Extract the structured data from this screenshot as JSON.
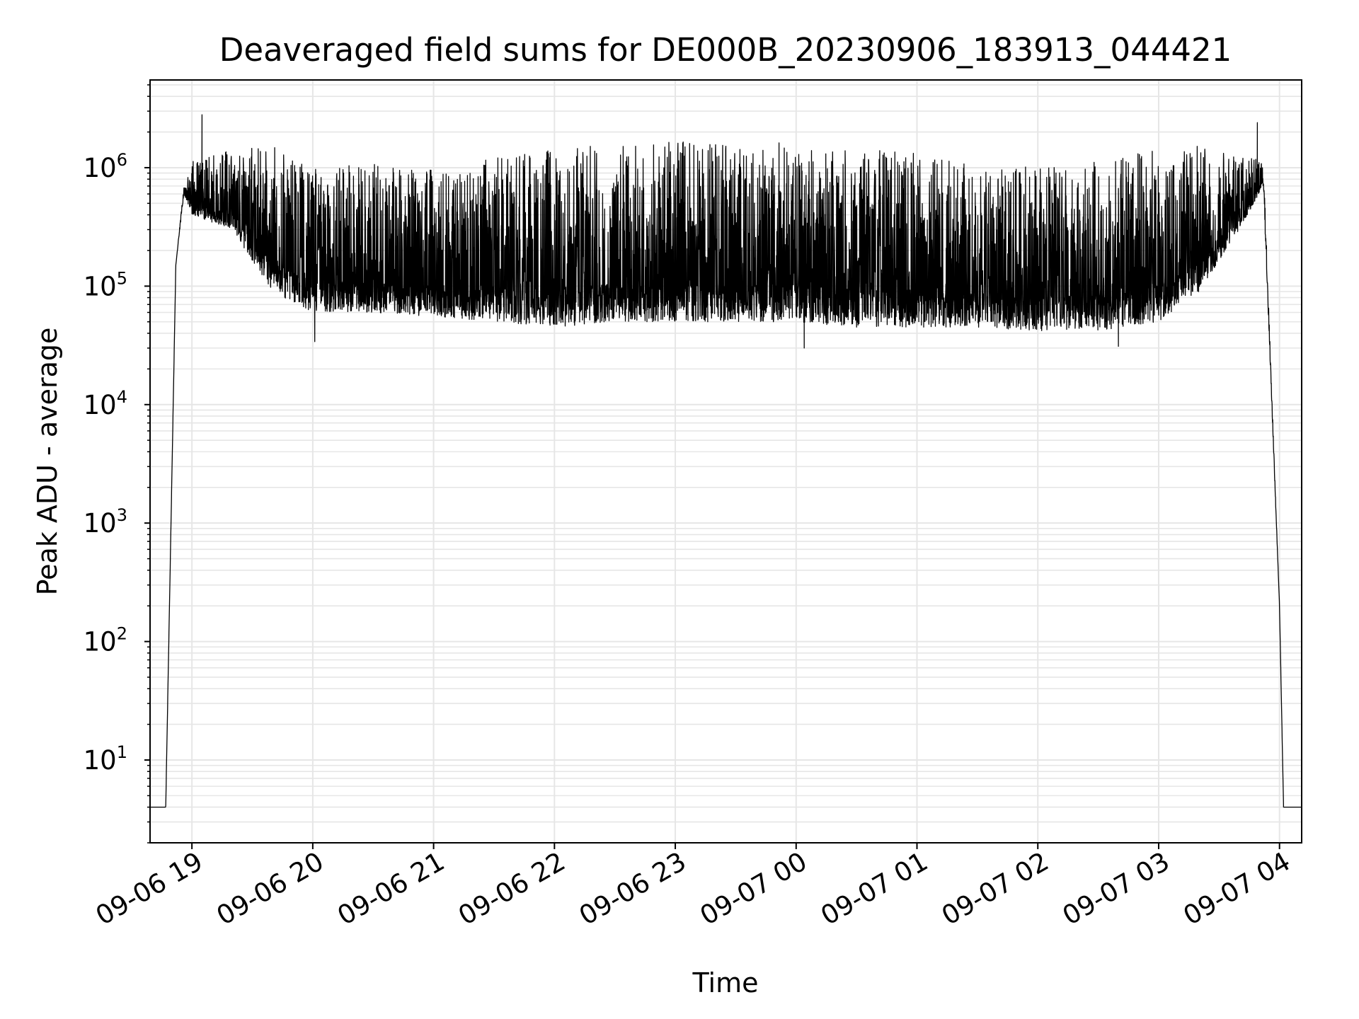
{
  "chart_data": {
    "type": "line",
    "title": "Deaveraged field sums for DE000B_20230906_183913_044421",
    "xlabel": "Time",
    "ylabel": "Peak ADU - average",
    "yscale": "log",
    "xlim": [
      "2023-09-06 18:39:13",
      "2023-09-07 04:11:00"
    ],
    "ylim": [
      2,
      5500000
    ],
    "grid": true,
    "x_tick_labels": [
      "09-06 19",
      "09-06 20",
      "09-06 21",
      "09-06 22",
      "09-06 23",
      "09-07 00",
      "09-07 01",
      "09-07 02",
      "09-07 03",
      "09-07 04"
    ],
    "y_tick_labels": [
      {
        "base": "10",
        "exp": "1"
      },
      {
        "base": "10",
        "exp": "2"
      },
      {
        "base": "10",
        "exp": "3"
      },
      {
        "base": "10",
        "exp": "4"
      },
      {
        "base": "10",
        "exp": "5"
      },
      {
        "base": "10",
        "exp": "6"
      }
    ],
    "line_color": "#000000",
    "grid_color": "#e6e6e6",
    "series": [
      {
        "envelope": {
          "x": [
            "2023-09-06 18:39:13",
            "2023-09-06 18:45",
            "2023-09-06 18:47",
            "2023-09-06 18:52",
            "2023-09-06 18:56",
            "2023-09-06 19:00",
            "2023-09-06 19:20",
            "2023-09-06 19:40",
            "2023-09-06 20:00",
            "2023-09-06 20:30",
            "2023-09-06 21:00",
            "2023-09-06 21:30",
            "2023-09-06 22:00",
            "2023-09-06 22:30",
            "2023-09-06 23:00",
            "2023-09-06 23:30",
            "2023-09-07 00:00",
            "2023-09-07 00:30",
            "2023-09-07 01:00",
            "2023-09-07 01:30",
            "2023-09-07 02:00",
            "2023-09-07 02:30",
            "2023-09-07 03:00",
            "2023-09-07 03:20",
            "2023-09-07 03:40",
            "2023-09-07 03:52",
            "2023-09-07 04:00",
            "2023-09-07 04:02",
            "2023-09-07 04:11"
          ],
          "low": [
            4,
            4,
            4,
            150000,
            600000,
            400000,
            300000,
            90000,
            60000,
            60000,
            55000,
            50000,
            45000,
            50000,
            50000,
            50000,
            50000,
            45000,
            45000,
            45000,
            42000,
            42000,
            50000,
            90000,
            300000,
            700000,
            200,
            4,
            4
          ],
          "high": [
            4,
            4,
            4,
            150000,
            700000,
            1100000,
            1400000,
            1500000,
            900000,
            1000000,
            900000,
            1100000,
            1300000,
            1500000,
            1500000,
            1500000,
            1500000,
            1300000,
            1200000,
            1000000,
            1000000,
            1100000,
            1300000,
            1400000,
            1300000,
            1100000,
            200,
            4,
            4
          ]
        },
        "spikes": [
          {
            "x": "2023-09-06 19:05",
            "y": 2800000
          },
          {
            "x": "2023-09-07 03:49",
            "y": 2400000
          }
        ],
        "dips": [
          {
            "x": "2023-09-06 20:01",
            "y": 34000
          },
          {
            "x": "2023-09-07 00:04",
            "y": 30000
          },
          {
            "x": "2023-09-07 02:40",
            "y": 31000
          }
        ]
      }
    ]
  }
}
